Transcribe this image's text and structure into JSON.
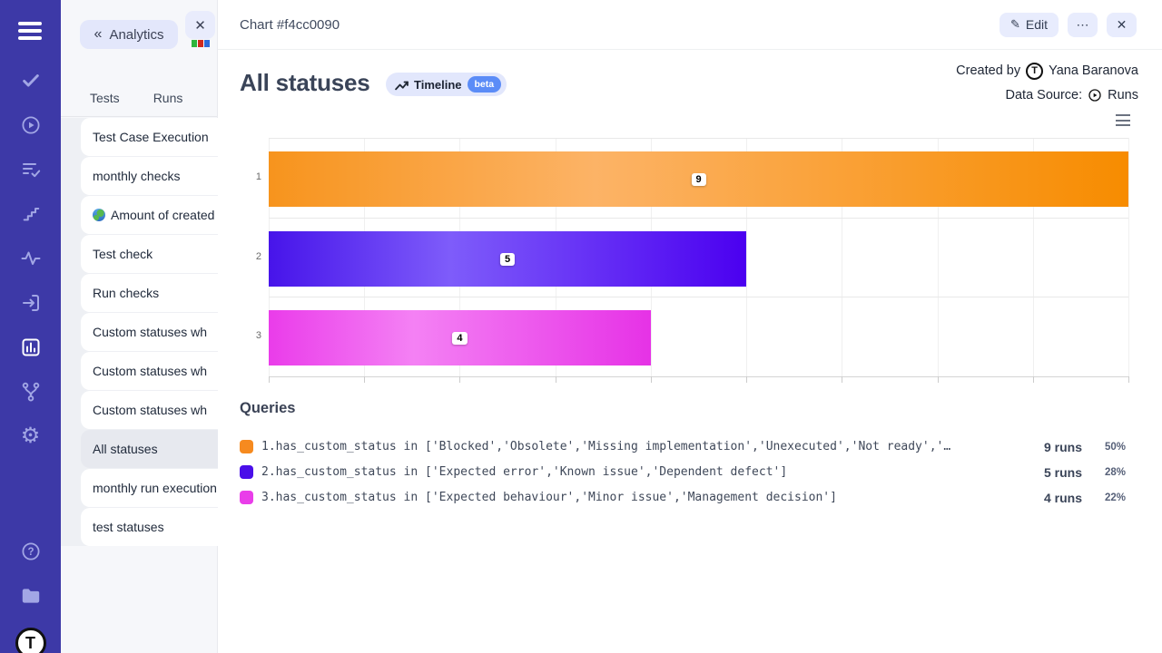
{
  "colors": {
    "sidebar_bg": "#3d39a7",
    "sidebar_icon": "#a2a6e5",
    "accent_lavender": "#e3e7fb",
    "beta_blue": "#5b8cf7",
    "orange": "#f68a1f",
    "violet": "#4a0fe9",
    "magenta": "#e93ee9"
  },
  "sidebar": {
    "icons": [
      "menu",
      "check",
      "play-circle",
      "list-check",
      "stairs",
      "activity",
      "sign-in",
      "bar-chart",
      "branch",
      "gear",
      "help",
      "folder",
      "logo"
    ],
    "active_icon": "bar-chart",
    "logo_letter": "T",
    "gear_glyph": "⚙"
  },
  "panel": {
    "back_chevron": "«",
    "back_label": "Analytics",
    "close_glyph": "✕",
    "tabs": [
      "Tests",
      "Runs"
    ],
    "items": [
      {
        "label": "Test Case Execution"
      },
      {
        "label": "monthly checks"
      },
      {
        "label": "Amount of created",
        "icon": "globe"
      },
      {
        "label": "Test check"
      },
      {
        "label": "Run checks"
      },
      {
        "label": "Custom statuses wh"
      },
      {
        "label": "Custom statuses wh"
      },
      {
        "label": "Custom statuses wh"
      },
      {
        "label": "All statuses",
        "selected": true
      },
      {
        "label": "monthly run execution"
      },
      {
        "label": "test statuses"
      }
    ]
  },
  "header": {
    "title": "Chart #f4cc0090",
    "edit_icon": "✎",
    "edit_label": "Edit",
    "more_glyph": "⋯",
    "close_glyph": "✕"
  },
  "chart": {
    "title": "All statuses",
    "timeline_label": "Timeline",
    "beta_label": "beta",
    "created_by_label": "Created by",
    "author": "Yana Baranova",
    "avatar_letter": "T",
    "data_source_label": "Data Source:",
    "data_source_value": "Runs"
  },
  "chart_data": {
    "type": "bar",
    "orientation": "horizontal",
    "title": "All statuses",
    "categories": [
      "1",
      "2",
      "3"
    ],
    "values": [
      9,
      5,
      4
    ],
    "xlim": [
      0,
      9
    ],
    "x_tick_count": 10,
    "grid": true,
    "legend": false,
    "data_labels": true,
    "bar_gradients": [
      [
        "#f7941d",
        "#fcb366",
        "#f78c00"
      ],
      [
        "#4714ea",
        "#7e5cfa",
        "#4b00f0"
      ],
      [
        "#ea3cea",
        "#f481f4",
        "#e632e6"
      ]
    ]
  },
  "queries": {
    "heading": "Queries",
    "rows": [
      {
        "color": "#f68a1f",
        "query": "1.has_custom_status in ['Blocked','Obsolete','Missing implementation','Unexecuted','Not ready','…",
        "runs": "9 runs",
        "percent": "50%"
      },
      {
        "color": "#4a0fe9",
        "query": "2.has_custom_status in ['Expected error','Known issue','Dependent defect']",
        "runs": "5 runs",
        "percent": "28%"
      },
      {
        "color": "#e93ee9",
        "query": "3.has_custom_status in ['Expected behaviour','Minor issue','Management decision']",
        "runs": "4 runs",
        "percent": "22%"
      }
    ]
  }
}
